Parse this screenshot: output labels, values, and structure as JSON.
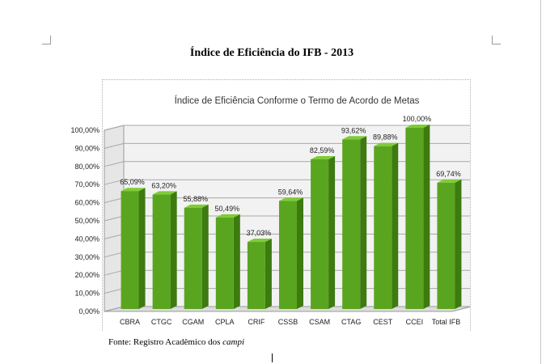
{
  "document": {
    "title": "Índice de Eficiência do IFB - 2013",
    "source_prefix": "Fonte: Registro Acadêmico dos",
    "source_italic": "campi"
  },
  "chart_data": {
    "type": "bar",
    "title": "Índice de Eficiência Conforme o Termo de Acordo de Metas",
    "categories": [
      "CBRA",
      "CTGC",
      "CGAM",
      "CPLA",
      "CRIF",
      "CSSB",
      "CSAM",
      "CTAG",
      "CEST",
      "CCEI",
      "Total IFB"
    ],
    "values": [
      65.09,
      63.2,
      55.88,
      50.49,
      37.03,
      59.64,
      82.59,
      93.62,
      89.88,
      100.0,
      69.74
    ],
    "value_labels": [
      "65,09%",
      "63,20%",
      "55,88%",
      "50,49%",
      "37,03%",
      "59,64%",
      "82,59%",
      "93,62%",
      "89,88%",
      "100,00%",
      "69,74%"
    ],
    "ylim": [
      0,
      100
    ],
    "yticks": [
      "0,00%",
      "10,00%",
      "20,00%",
      "30,00%",
      "40,00%",
      "50,00%",
      "60,00%",
      "70,00%",
      "80,00%",
      "90,00%",
      "100,00%"
    ],
    "xlabel": "",
    "ylabel": "",
    "grid": true,
    "legend": "none",
    "colors": {
      "bar": "#5aa51f",
      "bar_side": "#3d7a10",
      "bar_top": "#7fcc36",
      "grid": "#a8a8a8",
      "wall": "#f2f2f2"
    }
  }
}
